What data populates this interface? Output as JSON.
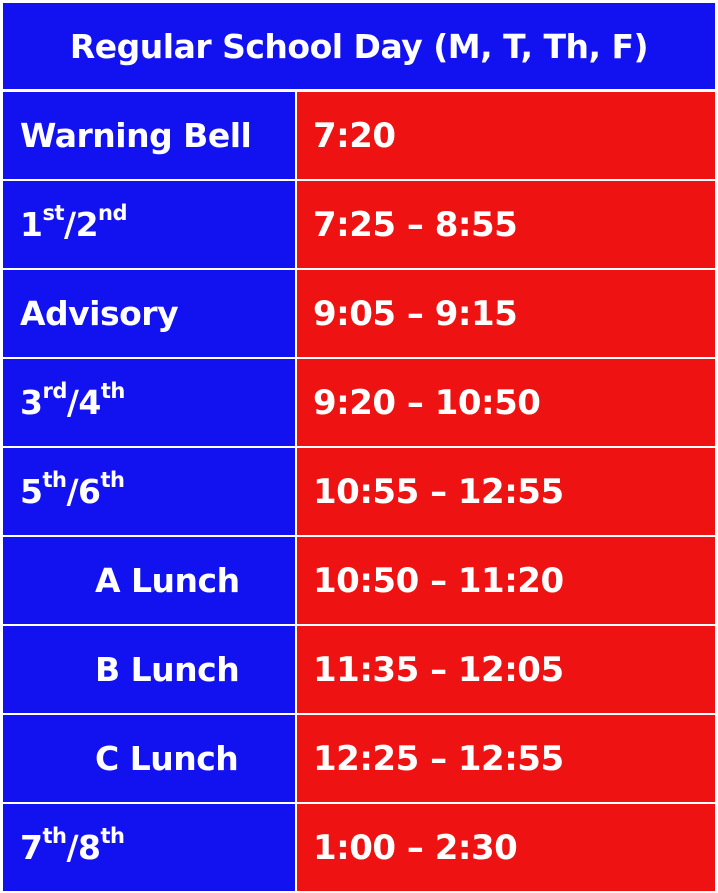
{
  "colors": {
    "label_bg": "#1212F0",
    "time_bg": "#EE1212",
    "title_bg": "#1212F0",
    "text": "#FFFFFF",
    "grid_lines": "#FFFFFF"
  },
  "title": "Regular School Day (M, T, Th, F)",
  "rows": [
    {
      "label": "Warning Bell",
      "time": "7:20"
    },
    {
      "label_parts": [
        "1",
        "st",
        "/2",
        "nd"
      ],
      "time": "7:25 – 8:55"
    },
    {
      "label": "Advisory",
      "time": "9:05 – 9:15"
    },
    {
      "label_parts": [
        "3",
        "rd",
        "/4",
        "th"
      ],
      "time": "9:20 – 10:50"
    },
    {
      "label_parts": [
        "5",
        "th",
        "/6",
        "th"
      ],
      "time": "10:55 – 12:55"
    },
    {
      "label": "A Lunch",
      "time": "10:50 – 11:20"
    },
    {
      "label": "B Lunch",
      "time": "11:35 – 12:05"
    },
    {
      "label": "C Lunch",
      "time": "12:25 – 12:55"
    },
    {
      "label_parts": [
        "7",
        "th",
        "/8",
        "th"
      ],
      "time": "1:00 – 2:30"
    }
  ]
}
